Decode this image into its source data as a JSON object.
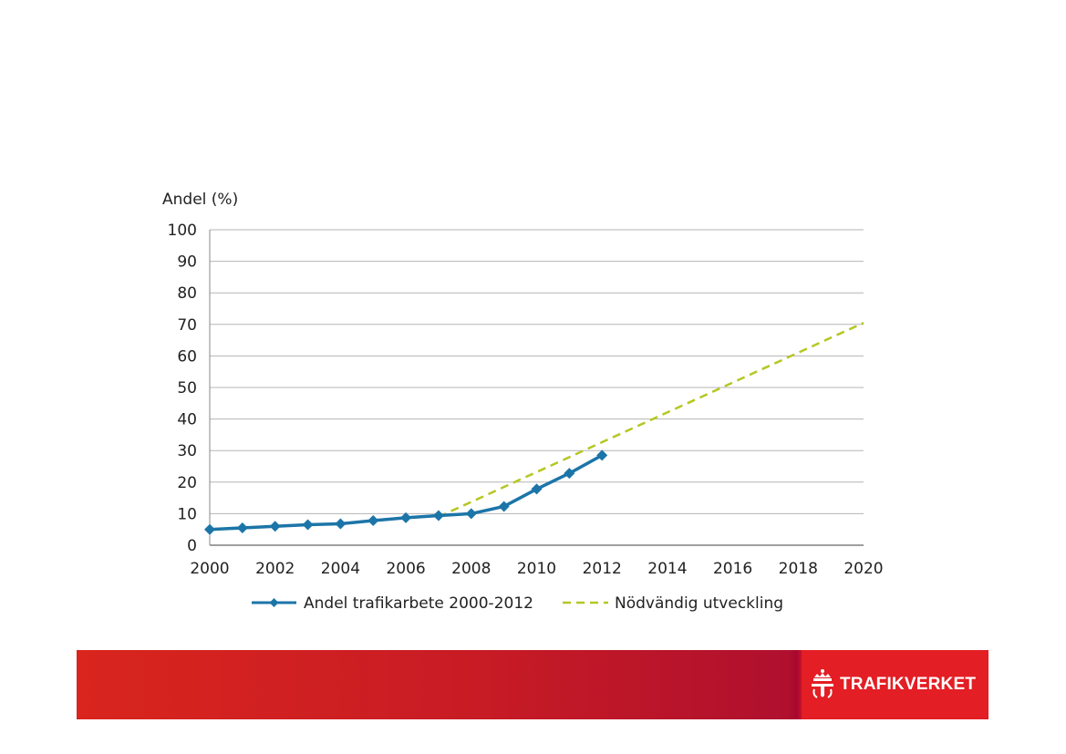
{
  "chart_data": {
    "type": "line",
    "title": "",
    "xlabel": "",
    "ylabel": "Andel (%)",
    "xlim": [
      2000,
      2020
    ],
    "ylim": [
      0,
      100
    ],
    "x_ticks": [
      "2000",
      "2002",
      "2004",
      "2006",
      "2008",
      "2010",
      "2012",
      "2014",
      "2016",
      "2018",
      "2020"
    ],
    "y_ticks": [
      "0",
      "10",
      "20",
      "30",
      "40",
      "50",
      "60",
      "70",
      "80",
      "90",
      "100"
    ],
    "grid": true,
    "legend_position": "bottom",
    "series": [
      {
        "name": "Andel trafikarbete 2000-2012",
        "style": "solid-marker",
        "color": "#1c75a8",
        "x": [
          2000,
          2001,
          2002,
          2003,
          2004,
          2005,
          2006,
          2007,
          2008,
          2009,
          2010,
          2011,
          2012
        ],
        "y": [
          5,
          5.5,
          6,
          6.5,
          6.8,
          7.8,
          8.7,
          9.4,
          10,
          12.3,
          17.8,
          22.8,
          28.5
        ]
      },
      {
        "name": "Nödvändig utveckling",
        "style": "dashed",
        "color": "#b5c722",
        "x": [
          2007,
          2020
        ],
        "y": [
          9,
          70.5
        ]
      }
    ]
  },
  "footer": {
    "logo_text": "TRAFIKVERKET",
    "logo_icon": "crown-t-icon"
  }
}
